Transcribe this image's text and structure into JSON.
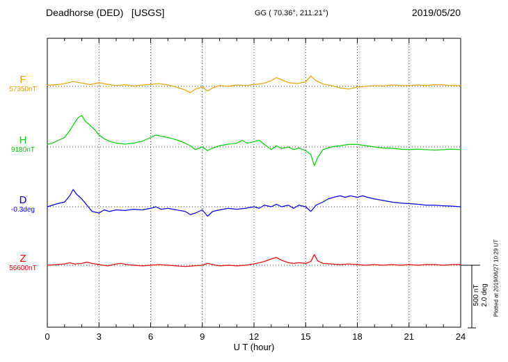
{
  "header": {
    "station": "Deadhorse (DED)   [USGS]",
    "coords": "GG ( 70.36°, 211.21°)",
    "date": "2019/05/20"
  },
  "footer": {
    "plotted_at": "Plotted at 2019/06/27 10:29 UT"
  },
  "scalebar": {
    "nt": "500 nT",
    "deg": "2.0 deg"
  },
  "chart_data": {
    "type": "line",
    "xlabel": "U T (hour)",
    "x_range": [
      0,
      24
    ],
    "x_ticks": [
      0,
      3,
      6,
      9,
      12,
      15,
      18,
      21,
      24
    ],
    "points_are": "offset from component baseline, nT for F/H/Z and degrees for D",
    "scale_reference": {
      "nt_per_division": "500 nT",
      "deg_per_division": "2.0 deg"
    },
    "series": [
      {
        "name": "F",
        "value_label": "57350nT",
        "unit": "nT",
        "color": "#e8a000",
        "points": [
          [
            0,
            8
          ],
          [
            0.5,
            13
          ],
          [
            1,
            22
          ],
          [
            1.5,
            38
          ],
          [
            2,
            26
          ],
          [
            2.5,
            14
          ],
          [
            3,
            29
          ],
          [
            3.5,
            16
          ],
          [
            4,
            6
          ],
          [
            4.5,
            13
          ],
          [
            5,
            3
          ],
          [
            5.5,
            10
          ],
          [
            6,
            16
          ],
          [
            6.5,
            22
          ],
          [
            7,
            11
          ],
          [
            7.5,
            -6
          ],
          [
            8,
            -29
          ],
          [
            8.3,
            -51
          ],
          [
            8.6,
            -22
          ],
          [
            9,
            -6
          ],
          [
            9.3,
            -38
          ],
          [
            9.6,
            -13
          ],
          [
            10,
            6
          ],
          [
            10.5,
            0
          ],
          [
            11,
            11
          ],
          [
            11.5,
            6
          ],
          [
            12,
            14
          ],
          [
            12.5,
            22
          ],
          [
            13,
            45
          ],
          [
            13.3,
            70
          ],
          [
            13.6,
            53
          ],
          [
            14,
            29
          ],
          [
            14.5,
            22
          ],
          [
            15,
            35
          ],
          [
            15.3,
            83
          ],
          [
            15.6,
            45
          ],
          [
            16,
            19
          ],
          [
            16.5,
            6
          ],
          [
            17,
            -13
          ],
          [
            17.5,
            -22
          ],
          [
            18,
            -6
          ],
          [
            18.5,
            0
          ],
          [
            19,
            6
          ],
          [
            19.5,
            3
          ],
          [
            20,
            11
          ],
          [
            20.5,
            6
          ],
          [
            21,
            6
          ],
          [
            21.5,
            11
          ],
          [
            22,
            6
          ],
          [
            22.5,
            14
          ],
          [
            23,
            11
          ],
          [
            23.5,
            6
          ],
          [
            24,
            6
          ]
        ]
      },
      {
        "name": "H",
        "value_label": "9180nT",
        "unit": "nT",
        "color": "#00cc00",
        "points": [
          [
            0,
            20
          ],
          [
            0.3,
            30
          ],
          [
            0.6,
            50
          ],
          [
            1,
            75
          ],
          [
            1.3,
            130
          ],
          [
            1.6,
            195
          ],
          [
            1.8,
            235
          ],
          [
            2,
            250
          ],
          [
            2.2,
            205
          ],
          [
            2.5,
            170
          ],
          [
            2.8,
            130
          ],
          [
            3,
            95
          ],
          [
            3.3,
            65
          ],
          [
            3.6,
            45
          ],
          [
            4,
            30
          ],
          [
            4.5,
            22
          ],
          [
            5,
            30
          ],
          [
            5.5,
            45
          ],
          [
            6,
            75
          ],
          [
            6.3,
            95
          ],
          [
            6.6,
            85
          ],
          [
            7,
            75
          ],
          [
            7.3,
            64
          ],
          [
            7.6,
            52
          ],
          [
            8,
            30
          ],
          [
            8.3,
            9
          ],
          [
            8.6,
            -22
          ],
          [
            9,
            0
          ],
          [
            9.3,
            -30
          ],
          [
            9.6,
            -9
          ],
          [
            10,
            9
          ],
          [
            10.5,
            22
          ],
          [
            11,
            30
          ],
          [
            11.3,
            52
          ],
          [
            11.6,
            30
          ],
          [
            12,
            42
          ],
          [
            12.3,
            52
          ],
          [
            12.6,
            20
          ],
          [
            13,
            -22
          ],
          [
            13.3,
            9
          ],
          [
            13.6,
            -13
          ],
          [
            14,
            0
          ],
          [
            14.3,
            -22
          ],
          [
            14.6,
            -9
          ],
          [
            15,
            -30
          ],
          [
            15.3,
            -62
          ],
          [
            15.5,
            -150
          ],
          [
            15.7,
            -84
          ],
          [
            16,
            -22
          ],
          [
            16.5,
            0
          ],
          [
            17,
            9
          ],
          [
            17.5,
            20
          ],
          [
            18,
            20
          ],
          [
            18.5,
            9
          ],
          [
            19,
            0
          ],
          [
            19.5,
            -9
          ],
          [
            20,
            -11
          ],
          [
            20.5,
            -18
          ],
          [
            21,
            -22
          ],
          [
            21.5,
            -18
          ],
          [
            22,
            -22
          ],
          [
            22.5,
            -26
          ],
          [
            23,
            -22
          ],
          [
            23.5,
            -18
          ],
          [
            24,
            -22
          ]
        ]
      },
      {
        "name": "D",
        "value_label": "-0.3deg",
        "unit": "deg",
        "color": "#0000dd",
        "points": [
          [
            0,
            0
          ],
          [
            0.3,
            0.05
          ],
          [
            0.6,
            0.1
          ],
          [
            1,
            0.15
          ],
          [
            1.3,
            0.35
          ],
          [
            1.5,
            0.55
          ],
          [
            1.7,
            0.4
          ],
          [
            2,
            0.25
          ],
          [
            2.3,
            0.05
          ],
          [
            2.6,
            -0.15
          ],
          [
            3,
            -0.2
          ],
          [
            3.3,
            -0.1
          ],
          [
            3.6,
            -0.15
          ],
          [
            4,
            -0.1
          ],
          [
            4.5,
            -0.12
          ],
          [
            5,
            -0.08
          ],
          [
            5.5,
            -0.1
          ],
          [
            6,
            -0.05
          ],
          [
            6.3,
            0
          ],
          [
            6.6,
            -0.08
          ],
          [
            7,
            -0.05
          ],
          [
            7.5,
            -0.1
          ],
          [
            8,
            -0.15
          ],
          [
            8.3,
            -0.25
          ],
          [
            8.6,
            -0.2
          ],
          [
            9,
            -0.1
          ],
          [
            9.3,
            -0.3
          ],
          [
            9.6,
            -0.15
          ],
          [
            10,
            -0.1
          ],
          [
            10.5,
            -0.05
          ],
          [
            11,
            -0.08
          ],
          [
            11.5,
            -0.05
          ],
          [
            12,
            0
          ],
          [
            12.3,
            -0.05
          ],
          [
            12.6,
            0.05
          ],
          [
            13,
            0
          ],
          [
            13.3,
            0.08
          ],
          [
            13.6,
            0
          ],
          [
            14,
            0.05
          ],
          [
            14.3,
            -0.05
          ],
          [
            14.6,
            0.05
          ],
          [
            15,
            0
          ],
          [
            15.3,
            -0.15
          ],
          [
            15.6,
            0.05
          ],
          [
            16,
            0.15
          ],
          [
            16.3,
            0.25
          ],
          [
            16.6,
            0.3
          ],
          [
            17,
            0.35
          ],
          [
            17.3,
            0.3
          ],
          [
            17.6,
            0.35
          ],
          [
            18,
            0.3
          ],
          [
            18.3,
            0.35
          ],
          [
            18.6,
            0.3
          ],
          [
            19,
            0.25
          ],
          [
            19.5,
            0.2
          ],
          [
            20,
            0.15
          ],
          [
            20.5,
            0.12
          ],
          [
            21,
            0.1
          ],
          [
            21.5,
            0.08
          ],
          [
            22,
            0.05
          ],
          [
            22.5,
            0.05
          ],
          [
            23,
            0.03
          ],
          [
            23.5,
            0.02
          ],
          [
            24,
            0
          ]
        ]
      },
      {
        "name": "Z",
        "value_label": "56600nT",
        "unit": "nT",
        "color": "#e60000",
        "points": [
          [
            0,
            0
          ],
          [
            0.5,
            5
          ],
          [
            1,
            10
          ],
          [
            1.3,
            20
          ],
          [
            1.6,
            10
          ],
          [
            2,
            15
          ],
          [
            2.3,
            25
          ],
          [
            2.6,
            15
          ],
          [
            3,
            5
          ],
          [
            3.5,
            -5
          ],
          [
            4,
            10
          ],
          [
            4.3,
            15
          ],
          [
            4.6,
            5
          ],
          [
            5,
            0
          ],
          [
            5.5,
            -5
          ],
          [
            6,
            0
          ],
          [
            6.5,
            5
          ],
          [
            7,
            0
          ],
          [
            7.5,
            -5
          ],
          [
            8,
            -10
          ],
          [
            8.5,
            -5
          ],
          [
            9,
            0
          ],
          [
            9.3,
            15
          ],
          [
            9.6,
            5
          ],
          [
            10,
            -5
          ],
          [
            10.5,
            0
          ],
          [
            11,
            -5
          ],
          [
            11.5,
            0
          ],
          [
            12,
            10
          ],
          [
            12.3,
            20
          ],
          [
            12.6,
            30
          ],
          [
            13,
            50
          ],
          [
            13.3,
            62
          ],
          [
            13.6,
            40
          ],
          [
            14,
            20
          ],
          [
            14.3,
            15
          ],
          [
            14.6,
            20
          ],
          [
            15,
            15
          ],
          [
            15.3,
            30
          ],
          [
            15.5,
            85
          ],
          [
            15.7,
            35
          ],
          [
            16,
            15
          ],
          [
            16.5,
            10
          ],
          [
            17,
            5
          ],
          [
            17.5,
            10
          ],
          [
            18,
            5
          ],
          [
            18.5,
            0
          ],
          [
            19,
            5
          ],
          [
            19.5,
            0
          ],
          [
            20,
            5
          ],
          [
            20.5,
            0
          ],
          [
            21,
            5
          ],
          [
            21.5,
            0
          ],
          [
            22,
            5
          ],
          [
            22.5,
            5
          ],
          [
            23,
            0
          ],
          [
            23.5,
            5
          ],
          [
            24,
            5
          ]
        ]
      }
    ]
  }
}
